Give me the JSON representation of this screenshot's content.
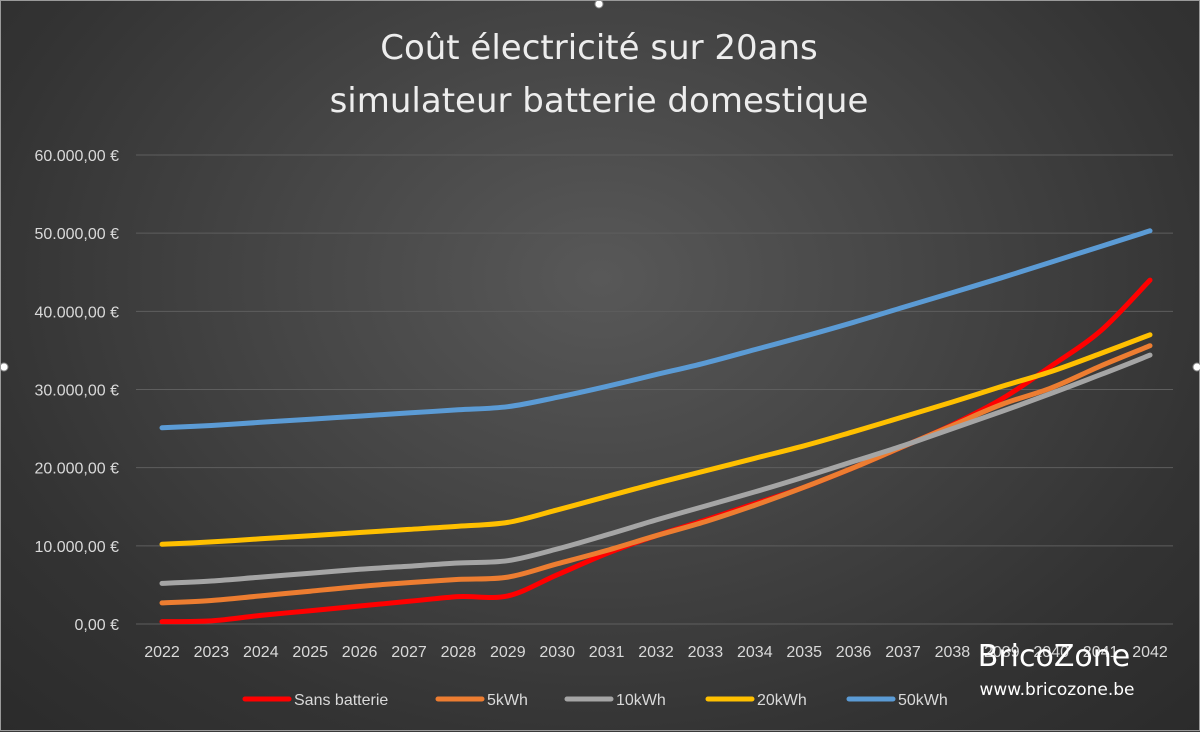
{
  "chart_data": {
    "type": "line",
    "title_lines": [
      "Coût électricité sur 20ans",
      "simulateur batterie domestique"
    ],
    "x": [
      "2022",
      "2023",
      "2024",
      "2025",
      "2026",
      "2027",
      "2028",
      "2029",
      "2030",
      "2031",
      "2032",
      "2033",
      "2034",
      "2035",
      "2036",
      "2037",
      "2038",
      "2039",
      "2040",
      "2041",
      "2042"
    ],
    "y_ticks": [
      "0,00 €",
      "10.000,00 €",
      "20.000,00 €",
      "30.000,00 €",
      "40.000,00 €",
      "50.000,00 €",
      "60.000,00 €"
    ],
    "ylim": [
      0,
      60000
    ],
    "grid": true,
    "legend_position": "bottom",
    "series": [
      {
        "name": "Sans batterie",
        "color": "#ff0000",
        "values": [
          300,
          400,
          1100,
          1700,
          2300,
          2900,
          3500,
          3600,
          6300,
          9000,
          11300,
          13300,
          15400,
          17500,
          20000,
          22700,
          25500,
          28800,
          33000,
          37500,
          44000
        ]
      },
      {
        "name": "5kWh",
        "color": "#ed7d31",
        "values": [
          2700,
          3000,
          3600,
          4200,
          4800,
          5300,
          5700,
          6000,
          7700,
          9400,
          11300,
          13100,
          15200,
          17500,
          20000,
          22700,
          25400,
          28100,
          30200,
          33000,
          35600
        ]
      },
      {
        "name": "10kWh",
        "color": "#a5a5a5",
        "values": [
          5200,
          5500,
          6000,
          6500,
          7000,
          7400,
          7800,
          8100,
          9600,
          11400,
          13300,
          15100,
          16900,
          18800,
          20800,
          22800,
          25000,
          27200,
          29500,
          31900,
          34400
        ]
      },
      {
        "name": "20kWh",
        "color": "#ffc000",
        "values": [
          10200,
          10500,
          10900,
          11300,
          11700,
          12100,
          12500,
          13000,
          14600,
          16300,
          18000,
          19600,
          21200,
          22800,
          24600,
          26500,
          28400,
          30400,
          32300,
          34600,
          37000
        ]
      },
      {
        "name": "50kWh",
        "color": "#5b9bd5",
        "values": [
          25100,
          25400,
          25800,
          26200,
          26600,
          27000,
          27400,
          27800,
          29000,
          30400,
          31900,
          33400,
          35100,
          36800,
          38600,
          40500,
          42400,
          44300,
          46300,
          48300,
          50300
        ]
      }
    ]
  },
  "watermark": {
    "brand": "BricoZone",
    "url": "www.bricozone.be"
  }
}
